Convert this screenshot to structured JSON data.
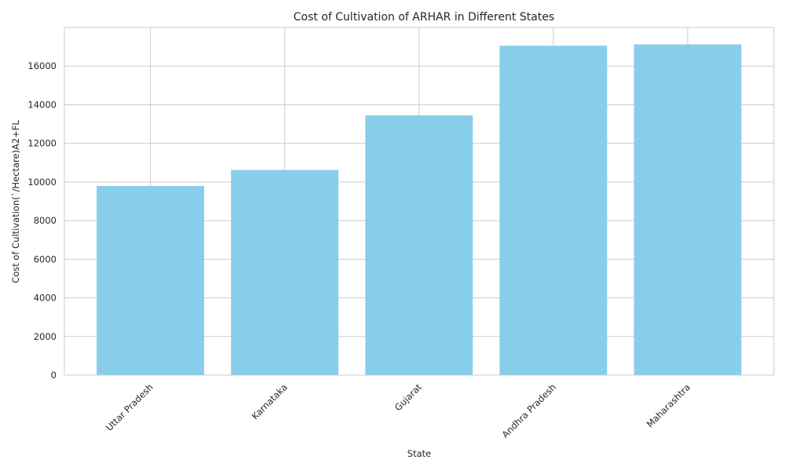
{
  "chart_data": {
    "type": "bar",
    "title": "Cost of Cultivation of ARHAR in Different States",
    "xlabel": "State",
    "ylabel": "Cost of Cultivation(`/Hectare)A2+FL",
    "categories": [
      "Uttar Pradesh",
      "Karnataka",
      "Gujarat",
      "Andhra Pradesh",
      "Maharashtra"
    ],
    "values": [
      9795,
      10620,
      13450,
      17055,
      17125
    ],
    "ylim": [
      0,
      18000
    ],
    "yticks": [
      "0",
      "2000",
      "4000",
      "6000",
      "8000",
      "10000",
      "12000",
      "14000",
      "16000"
    ],
    "grid": true,
    "legend": "none",
    "colors": {
      "bar": "#87ceeb",
      "grid": "#cccccc",
      "axes_border": "#cccccc",
      "text": "#262626"
    }
  }
}
